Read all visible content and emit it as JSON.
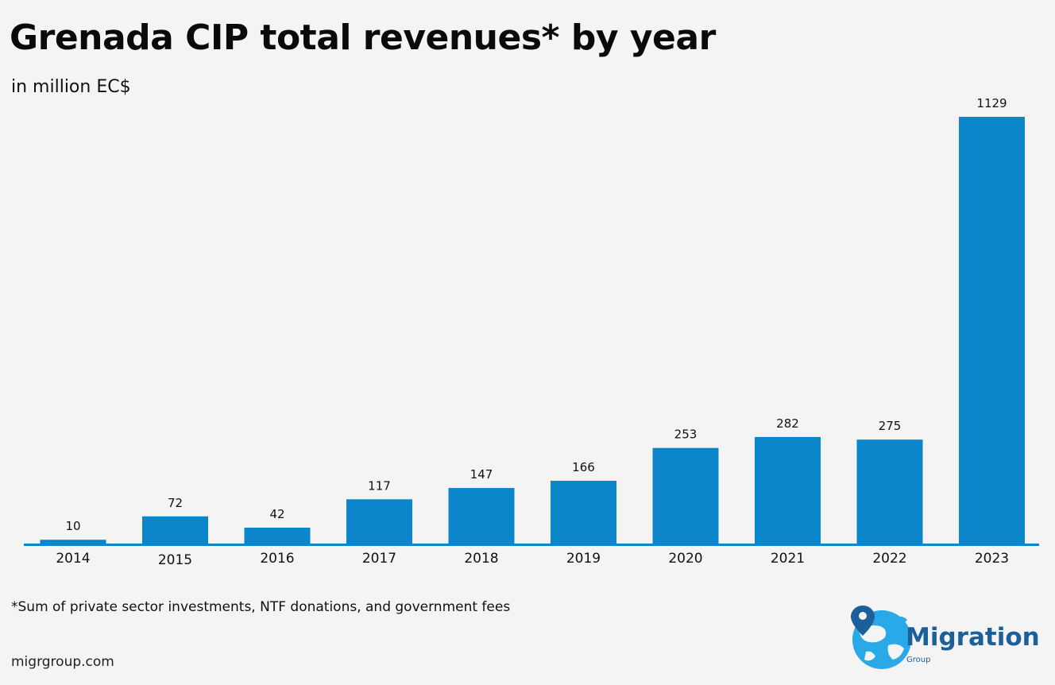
{
  "header": {
    "title": "Grenada CIP total revenues* by year",
    "subtitle": "in million EC$"
  },
  "footer": {
    "footnote": "*Sum of private sector investments, NTF donations, and government fees",
    "site": "migrgroup.com"
  },
  "logo": {
    "word": "Migration",
    "sub": "Group",
    "icon": "globe-pin-icon"
  },
  "colors": {
    "bar": "#0b86ca",
    "axis": "#0b86ca",
    "text": "#111111",
    "logo_blue": "#1c5f9a",
    "logo_light": "#29a9e8"
  },
  "chart_data": {
    "type": "bar",
    "title": "Grenada CIP total revenues* by year",
    "subtitle": "in million EC$",
    "xlabel": "",
    "ylabel": "",
    "categories": [
      "2014",
      "2015",
      "2016",
      "2017",
      "2018",
      "2019",
      "2020",
      "2021",
      "2022",
      "2023"
    ],
    "values": [
      10,
      72,
      42,
      117,
      147,
      166,
      253,
      282,
      275,
      1129
    ],
    "ylim": [
      0,
      1129
    ],
    "grid": false,
    "legend": "none",
    "data_labels": true
  }
}
